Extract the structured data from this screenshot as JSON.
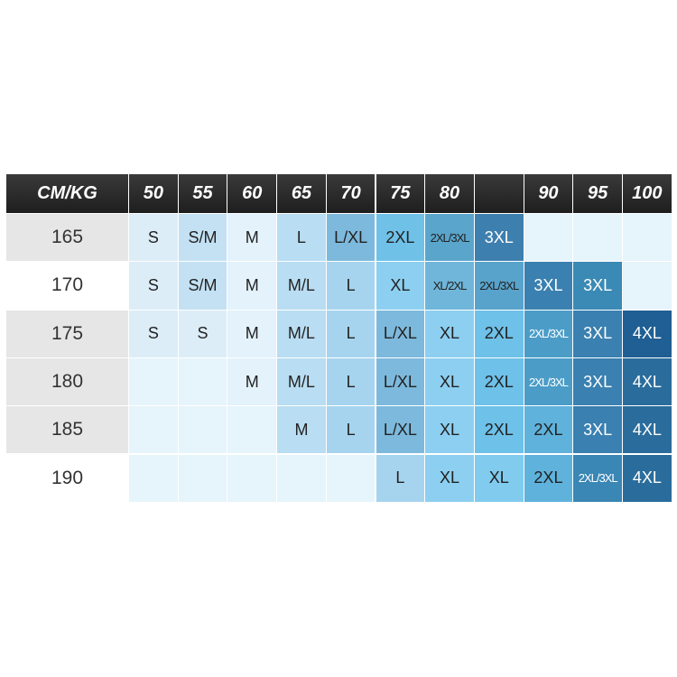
{
  "table": {
    "header": [
      "CM/KG",
      "50",
      "55",
      "60",
      "65",
      "70",
      "75",
      "80",
      null,
      "90",
      "95",
      "100"
    ],
    "rows": [
      [
        "165",
        "S",
        "S/M",
        "M",
        "L",
        "L/XL",
        "2XL",
        "2XL/3XL",
        "3XL",
        null,
        null,
        null
      ],
      [
        "170",
        "S",
        "S/M",
        "M",
        "M/L",
        "L",
        "XL",
        "XL/2XL",
        "2XL/3XL",
        "3XL",
        "3XL",
        null
      ],
      [
        "175",
        "S",
        "S",
        "M",
        "M/L",
        "L",
        "L/XL",
        "XL",
        "2XL",
        "2XL/3XL",
        "3XL",
        "4XL"
      ],
      [
        "180",
        null,
        null,
        "M",
        "M/L",
        "L",
        "L/XL",
        "XL",
        "2XL",
        "2XL/3XL",
        "3XL",
        "4XL"
      ],
      [
        "185",
        null,
        null,
        null,
        "M",
        "L",
        "L/XL",
        "XL",
        "2XL",
        "2XL",
        "3XL",
        "4XL"
      ],
      [
        "190",
        null,
        null,
        null,
        null,
        null,
        "L",
        "XL",
        "XL",
        "2XL",
        "2XL/3XL",
        "4XL"
      ]
    ]
  }
}
